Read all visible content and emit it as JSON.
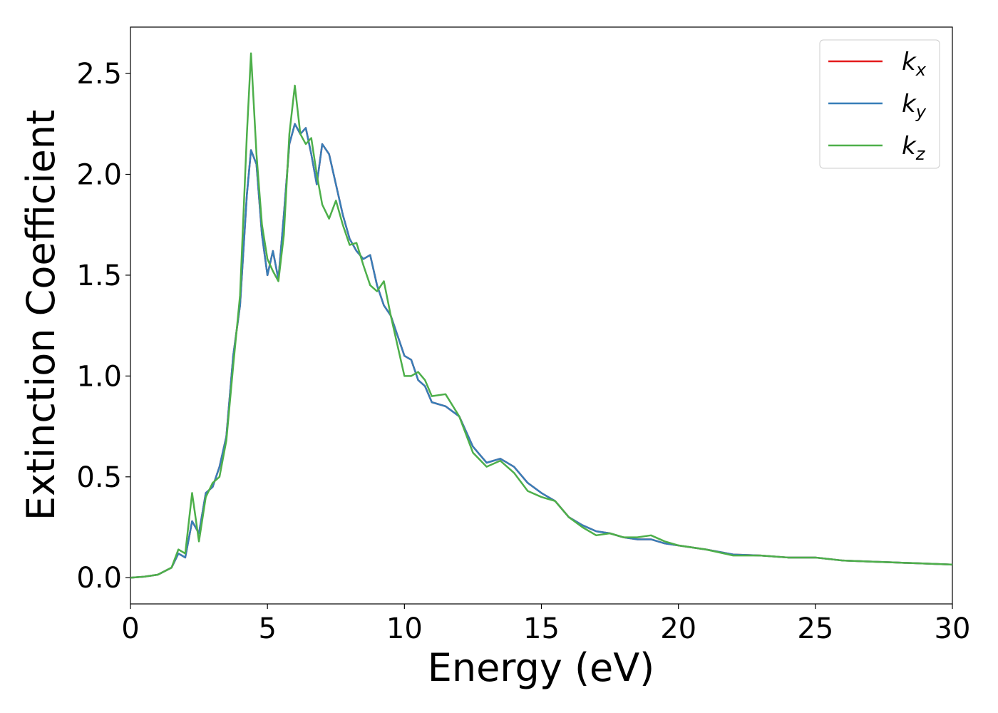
{
  "chart_data": {
    "type": "line",
    "x_label": "Energy (eV)",
    "y_label": "Extinction Coefficient",
    "x": [
      0,
      0.5,
      1,
      1.5,
      1.75,
      2,
      2.25,
      2.5,
      2.75,
      3,
      3.25,
      3.5,
      3.75,
      4,
      4.25,
      4.4,
      4.6,
      4.8,
      5,
      5.2,
      5.4,
      5.6,
      5.8,
      6,
      6.2,
      6.4,
      6.6,
      6.8,
      7,
      7.25,
      7.5,
      7.75,
      8,
      8.25,
      8.5,
      8.75,
      9,
      9.25,
      9.5,
      9.75,
      10,
      10.25,
      10.5,
      10.75,
      11,
      11.5,
      12,
      12.5,
      13,
      13.5,
      14,
      14.5,
      15,
      15.5,
      16,
      16.5,
      17,
      17.5,
      18,
      18.5,
      19,
      19.5,
      20,
      21,
      22,
      23,
      24,
      25,
      26,
      27,
      28,
      29,
      30
    ],
    "series": [
      {
        "name": "kx",
        "color": "#e41a1c",
        "values": [
          0,
          0.005,
          0.015,
          0.05,
          0.12,
          0.1,
          0.28,
          0.22,
          0.42,
          0.45,
          0.55,
          0.7,
          1.1,
          1.35,
          1.9,
          2.12,
          2.05,
          1.7,
          1.5,
          1.62,
          1.48,
          1.8,
          2.15,
          2.25,
          2.2,
          2.23,
          2.1,
          1.95,
          2.15,
          2.1,
          1.95,
          1.8,
          1.68,
          1.62,
          1.58,
          1.6,
          1.45,
          1.35,
          1.3,
          1.2,
          1.1,
          1.08,
          0.98,
          0.95,
          0.87,
          0.85,
          0.8,
          0.65,
          0.57,
          0.59,
          0.55,
          0.47,
          0.42,
          0.38,
          0.3,
          0.26,
          0.23,
          0.22,
          0.2,
          0.19,
          0.19,
          0.17,
          0.16,
          0.14,
          0.115,
          0.11,
          0.1,
          0.1,
          0.085,
          0.08,
          0.075,
          0.07,
          0.065
        ]
      },
      {
        "name": "ky",
        "color": "#377eb8",
        "values": [
          0,
          0.005,
          0.015,
          0.05,
          0.12,
          0.1,
          0.28,
          0.22,
          0.42,
          0.45,
          0.55,
          0.7,
          1.1,
          1.35,
          1.9,
          2.12,
          2.05,
          1.7,
          1.5,
          1.62,
          1.48,
          1.8,
          2.15,
          2.25,
          2.2,
          2.23,
          2.1,
          1.95,
          2.15,
          2.1,
          1.95,
          1.8,
          1.68,
          1.62,
          1.58,
          1.6,
          1.45,
          1.35,
          1.3,
          1.2,
          1.1,
          1.08,
          0.98,
          0.95,
          0.87,
          0.85,
          0.8,
          0.65,
          0.57,
          0.59,
          0.55,
          0.47,
          0.42,
          0.38,
          0.3,
          0.26,
          0.23,
          0.22,
          0.2,
          0.19,
          0.19,
          0.17,
          0.16,
          0.14,
          0.115,
          0.11,
          0.1,
          0.1,
          0.085,
          0.08,
          0.075,
          0.07,
          0.065
        ]
      },
      {
        "name": "kz",
        "color": "#4daf4a",
        "values": [
          0,
          0.005,
          0.015,
          0.05,
          0.14,
          0.12,
          0.42,
          0.18,
          0.4,
          0.47,
          0.5,
          0.68,
          1.05,
          1.4,
          2.2,
          2.6,
          2.1,
          1.75,
          1.58,
          1.52,
          1.47,
          1.7,
          2.2,
          2.44,
          2.2,
          2.15,
          2.18,
          2.0,
          1.85,
          1.78,
          1.87,
          1.75,
          1.65,
          1.66,
          1.55,
          1.45,
          1.42,
          1.47,
          1.3,
          1.15,
          1.0,
          1.0,
          1.02,
          0.98,
          0.9,
          0.91,
          0.8,
          0.62,
          0.55,
          0.58,
          0.52,
          0.43,
          0.4,
          0.38,
          0.3,
          0.25,
          0.21,
          0.22,
          0.2,
          0.2,
          0.21,
          0.18,
          0.16,
          0.14,
          0.11,
          0.11,
          0.1,
          0.1,
          0.085,
          0.08,
          0.075,
          0.07,
          0.065
        ]
      }
    ],
    "xlim": [
      0,
      30
    ],
    "ylim": [
      -0.13,
      2.73
    ],
    "xticks": [
      0,
      5,
      10,
      15,
      20,
      25,
      30
    ],
    "yticks": [
      {
        "value": 0,
        "label": "0.0"
      },
      0.5,
      {
        "value": 1,
        "label": "1.0"
      },
      1.5,
      {
        "value": 2,
        "label": "2.0"
      },
      2.5
    ],
    "grid": false,
    "legend": "upper right"
  }
}
